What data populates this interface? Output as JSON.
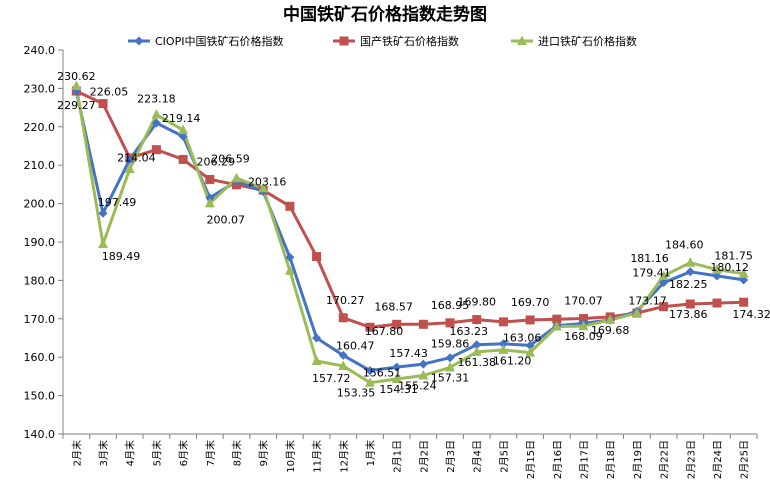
{
  "chart_data": {
    "type": "line",
    "title": "中国铁矿石价格指数走势图",
    "xlabel": "",
    "ylabel": "",
    "ylim": [
      140,
      240
    ],
    "ystep": 10,
    "yticks": [
      "140.0",
      "150.0",
      "160.0",
      "170.0",
      "180.0",
      "190.0",
      "200.0",
      "210.0",
      "220.0",
      "230.0",
      "240.0"
    ],
    "categories": [
      "2月末",
      "3月末",
      "4月末",
      "5月末",
      "6月末",
      "7月末",
      "8月末",
      "9月末",
      "10月末",
      "11月末",
      "12月末",
      "1月末",
      "2月1日",
      "2月2日",
      "2月3日",
      "2月4日",
      "2月5日",
      "2月15日",
      "2月16日",
      "2月17日",
      "2月18日",
      "2月19日",
      "2月22日",
      "2月23日",
      "2月24日",
      "2月25日"
    ],
    "series": [
      {
        "name": "CIOPI中国铁矿石价格指数",
        "color": "#4472C4",
        "marker": "diamond",
        "values": [
          229.27,
          197.49,
          211.5,
          221.0,
          217.5,
          201.5,
          205.8,
          203.16,
          186.0,
          165.0,
          160.47,
          156.51,
          157.43,
          158.2,
          159.86,
          163.23,
          163.5,
          163.06,
          168.2,
          168.8,
          169.68,
          172.0,
          179.41,
          182.25,
          181.16,
          180.12
        ]
      },
      {
        "name": "国产铁矿石价格指数",
        "color": "#C0504D",
        "marker": "square",
        "values": [
          229.3,
          226.05,
          211.9,
          214.04,
          211.5,
          206.29,
          204.9,
          203.5,
          199.3,
          186.2,
          170.27,
          167.8,
          168.57,
          168.57,
          168.95,
          169.8,
          169.2,
          169.7,
          169.9,
          170.07,
          170.5,
          171.5,
          173.17,
          173.86,
          174.1,
          174.32
        ]
      },
      {
        "name": "进口铁矿石价格指数",
        "color": "#9BBB59",
        "marker": "triangle",
        "values": [
          230.62,
          189.49,
          209.0,
          223.18,
          219.14,
          200.07,
          206.59,
          204.0,
          182.5,
          159.0,
          157.72,
          153.35,
          154.31,
          155.24,
          157.31,
          161.38,
          161.9,
          161.2,
          168.0,
          168.09,
          169.68,
          171.5,
          181.16,
          184.6,
          182.8,
          181.75
        ]
      }
    ],
    "data_labels": [
      {
        "series": 0,
        "index": 0,
        "text": "229.27"
      },
      {
        "series": 0,
        "index": 1,
        "text": "197.49"
      },
      {
        "series": 0,
        "index": 7,
        "text": "203.16"
      },
      {
        "series": 0,
        "index": 10,
        "text": "160.47"
      },
      {
        "series": 0,
        "index": 11,
        "text": "156.51"
      },
      {
        "series": 0,
        "index": 12,
        "text": "157.43"
      },
      {
        "series": 0,
        "index": 14,
        "text": "159.86"
      },
      {
        "series": 0,
        "index": 15,
        "text": "163.23"
      },
      {
        "series": 0,
        "index": 17,
        "text": "163.06"
      },
      {
        "series": 0,
        "index": 22,
        "text": "179.41"
      },
      {
        "series": 0,
        "index": 23,
        "text": "182.25"
      },
      {
        "series": 0,
        "index": 25,
        "text": "180.12"
      },
      {
        "series": 1,
        "index": 1,
        "text": "226.05"
      },
      {
        "series": 1,
        "index": 3,
        "text": "214.04"
      },
      {
        "series": 1,
        "index": 5,
        "text": "206.29"
      },
      {
        "series": 1,
        "index": 10,
        "text": "170.27"
      },
      {
        "series": 1,
        "index": 11,
        "text": "167.80"
      },
      {
        "series": 1,
        "index": 12,
        "text": "168.57"
      },
      {
        "series": 1,
        "index": 14,
        "text": "168.95"
      },
      {
        "series": 1,
        "index": 15,
        "text": "169.80"
      },
      {
        "series": 1,
        "index": 17,
        "text": "169.70"
      },
      {
        "series": 1,
        "index": 19,
        "text": "170.07"
      },
      {
        "series": 1,
        "index": 22,
        "text": "173.17"
      },
      {
        "series": 1,
        "index": 23,
        "text": "173.86"
      },
      {
        "series": 1,
        "index": 25,
        "text": "174.32"
      },
      {
        "series": 2,
        "index": 0,
        "text": "230.62"
      },
      {
        "series": 2,
        "index": 1,
        "text": "189.49"
      },
      {
        "series": 2,
        "index": 3,
        "text": "223.18"
      },
      {
        "series": 2,
        "index": 4,
        "text": "219.14"
      },
      {
        "series": 2,
        "index": 5,
        "text": "200.07"
      },
      {
        "series": 2,
        "index": 6,
        "text": "206.59"
      },
      {
        "series": 2,
        "index": 10,
        "text": "157.72"
      },
      {
        "series": 2,
        "index": 11,
        "text": "153.35"
      },
      {
        "series": 2,
        "index": 12,
        "text": "154.31"
      },
      {
        "series": 2,
        "index": 13,
        "text": "155.24"
      },
      {
        "series": 2,
        "index": 14,
        "text": "157.31"
      },
      {
        "series": 2,
        "index": 15,
        "text": "161.38"
      },
      {
        "series": 2,
        "index": 17,
        "text": "161.20"
      },
      {
        "series": 2,
        "index": 19,
        "text": "168.09"
      },
      {
        "series": 2,
        "index": 20,
        "text": "169.68"
      },
      {
        "series": 2,
        "index": 22,
        "text": "181.16"
      },
      {
        "series": 2,
        "index": 23,
        "text": "184.60"
      },
      {
        "series": 2,
        "index": 25,
        "text": "181.75"
      }
    ],
    "legend": "top-center",
    "grid": false
  }
}
